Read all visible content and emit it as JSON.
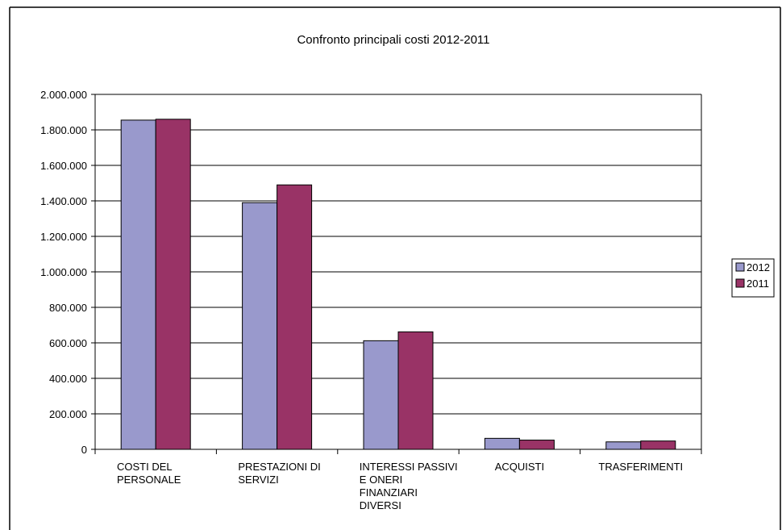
{
  "chart_data": {
    "type": "bar",
    "title": "Confronto principali costi 2012-2011",
    "categories": [
      [
        "COSTI DEL",
        "PERSONALE"
      ],
      [
        "PRESTAZIONI DI",
        "SERVIZI"
      ],
      [
        "INTERESSI PASSIVI",
        "E ONERI",
        "FINANZIARI",
        "DIVERSI"
      ],
      [
        "ACQUISTI"
      ],
      [
        "TRASFERIMENTI"
      ]
    ],
    "series": [
      {
        "name": "2012",
        "color": "#9999cc",
        "values": [
          1855000,
          1390000,
          612000,
          62000,
          42000
        ]
      },
      {
        "name": "2011",
        "color": "#993366",
        "values": [
          1860000,
          1490000,
          662000,
          52000,
          47000
        ]
      }
    ],
    "ylim": [
      0,
      2000000
    ],
    "yticks": [
      0,
      200000,
      400000,
      600000,
      800000,
      1000000,
      1200000,
      1400000,
      1600000,
      1800000,
      2000000
    ],
    "ytick_labels": [
      "0",
      "200.000",
      "400.000",
      "600.000",
      "800.000",
      "1.000.000",
      "1.200.000",
      "1.400.000",
      "1.600.000",
      "1.800.000",
      "2.000.000"
    ],
    "grid": true,
    "legend_position": "right"
  }
}
